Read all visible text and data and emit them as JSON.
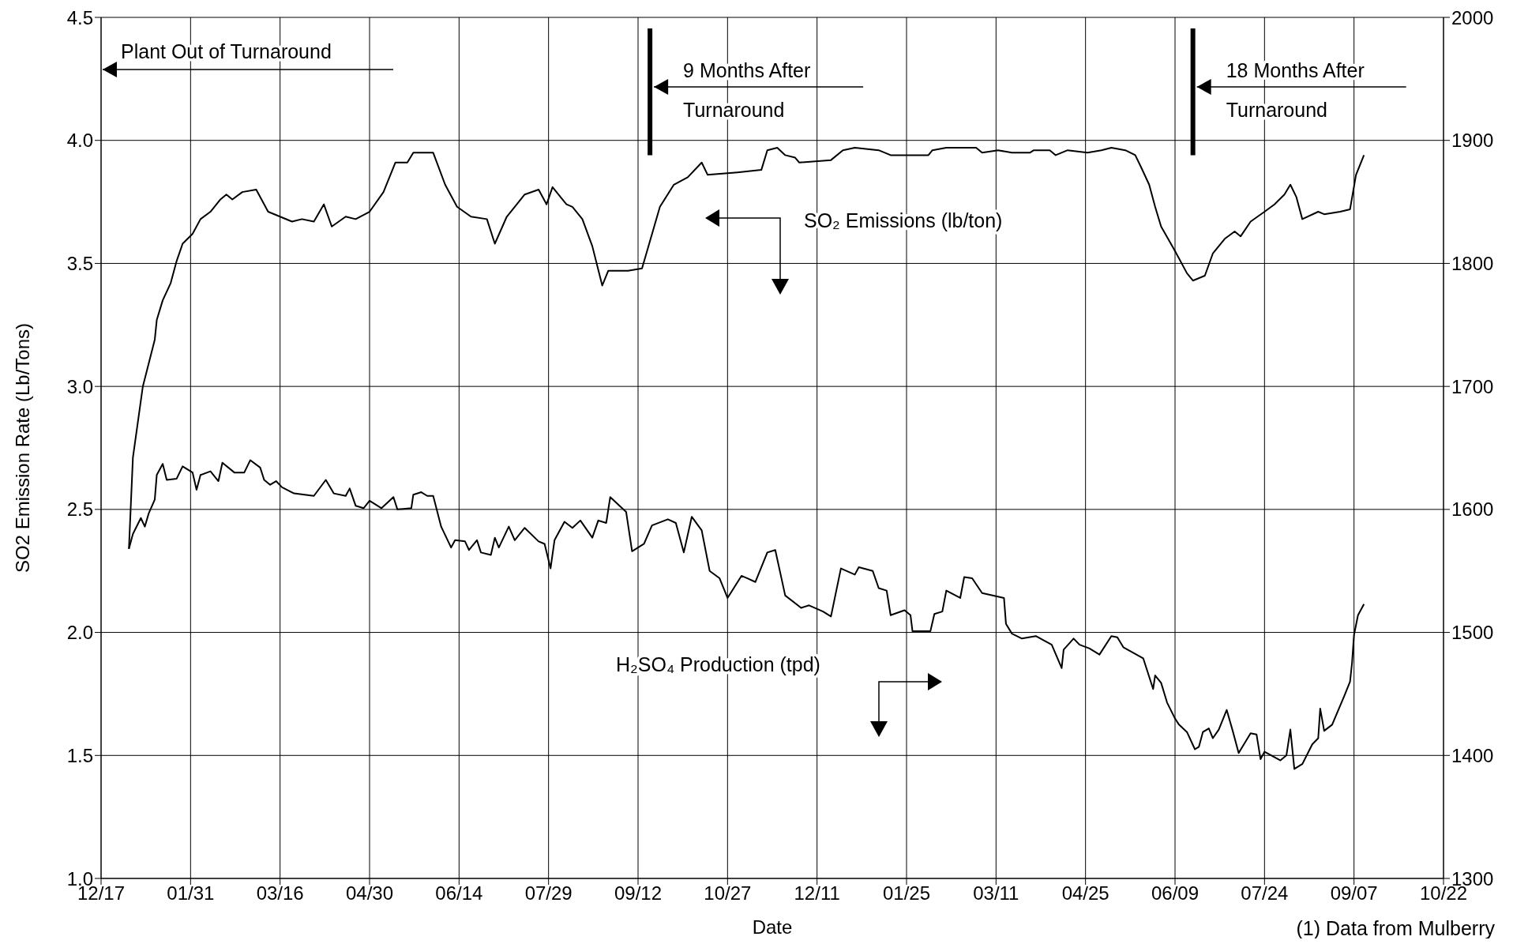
{
  "chart_data": {
    "type": "line",
    "xlabel": "Date",
    "ylabel": "SO2 Emission Rate (Lb/Tons)",
    "xlim": [
      "1999-12-17",
      "2001-10-22"
    ],
    "xticks": [
      {
        "value": "1999-12-17",
        "label": "12/17"
      },
      {
        "value": "2000-01-31",
        "label": "01/31"
      },
      {
        "value": "2000-03-16",
        "label": "03/16"
      },
      {
        "value": "2000-04-30",
        "label": "04/30"
      },
      {
        "value": "2000-06-14",
        "label": "06/14"
      },
      {
        "value": "2000-07-29",
        "label": "07/29"
      },
      {
        "value": "2000-09-12",
        "label": "09/12"
      },
      {
        "value": "2000-10-27",
        "label": "10/27"
      },
      {
        "value": "2000-12-11",
        "label": "12/11"
      },
      {
        "value": "2001-01-25",
        "label": "01/25"
      },
      {
        "value": "2001-03-11",
        "label": "03/11"
      },
      {
        "value": "2001-04-25",
        "label": "04/25"
      },
      {
        "value": "2001-06-09",
        "label": "06/09"
      },
      {
        "value": "2001-07-24",
        "label": "07/24"
      },
      {
        "value": "2001-09-07",
        "label": "09/07"
      },
      {
        "value": "2001-10-22",
        "label": "10/22"
      }
    ],
    "ylim": [
      1,
      4.5
    ],
    "yticks": [
      {
        "value": 1,
        "label": "1.0"
      },
      1.5,
      {
        "value": 2,
        "label": "2.0"
      },
      2.5,
      {
        "value": 3,
        "label": "3.0"
      },
      3.5,
      {
        "value": 4,
        "label": "4.0"
      },
      4.5
    ],
    "y2lim": [
      1300,
      2000
    ],
    "y2ticks": [
      1300,
      1400,
      1500,
      1600,
      1700,
      1800,
      1900,
      2000
    ],
    "grid": true,
    "series": [
      {
        "name": "SO₂ Emissions (lb/ton)",
        "color": "#000000",
        "x": [
          "1999-12-31",
          "2000-01-02",
          "2000-01-07",
          "2000-01-13",
          "2000-01-14",
          "2000-01-17",
          "2000-01-21",
          "2000-01-24",
          "2000-01-27",
          "2000-02-01",
          "2000-02-05",
          "2000-02-10",
          "2000-02-15",
          "2000-02-18",
          "2000-02-21",
          "2000-02-26",
          "2000-03-04",
          "2000-03-10",
          "2000-03-16",
          "2000-03-22",
          "2000-03-27",
          "2000-04-02",
          "2000-04-07",
          "2000-04-11",
          "2000-04-18",
          "2000-04-23",
          "2000-04-30",
          "2000-05-07",
          "2000-05-13",
          "2000-05-19",
          "2000-05-22",
          "2000-06-01",
          "2000-06-07",
          "2000-06-13",
          "2000-06-20",
          "2000-06-28",
          "2000-07-02",
          "2000-07-08",
          "2000-07-17",
          "2000-07-24",
          "2000-07-28",
          "2000-07-31",
          "2000-08-07",
          "2000-08-10",
          "2000-08-15",
          "2000-08-20",
          "2000-08-25",
          "2000-08-28",
          "2000-09-07",
          "2000-09-14",
          "2000-09-23",
          "2000-09-30",
          "2000-10-07",
          "2000-10-14",
          "2000-10-17",
          "2000-11-01",
          "2000-11-13",
          "2000-11-16",
          "2000-11-21",
          "2000-11-25",
          "2000-11-30",
          "2000-12-02",
          "2000-12-18",
          "2000-12-24",
          "2000-12-30",
          "2001-01-11",
          "2001-01-17",
          "2001-02-05",
          "2001-02-07",
          "2001-02-14",
          "2001-03-01",
          "2001-03-04",
          "2001-03-12",
          "2001-03-19",
          "2001-03-28",
          "2001-03-30",
          "2001-04-07",
          "2001-04-10",
          "2001-04-16",
          "2001-04-26",
          "2001-05-03",
          "2001-05-08",
          "2001-05-15",
          "2001-05-20",
          "2001-05-23",
          "2001-05-27",
          "2001-05-30",
          "2001-06-02",
          "2001-06-09",
          "2001-06-15",
          "2001-06-18",
          "2001-06-24",
          "2001-06-28",
          "2001-07-04",
          "2001-07-09",
          "2001-07-12",
          "2001-07-17",
          "2001-07-24",
          "2001-07-29",
          "2001-08-03",
          "2001-08-06",
          "2001-08-09",
          "2001-08-12",
          "2001-08-20",
          "2001-08-23",
          "2001-08-31",
          "2001-09-05",
          "2001-09-08",
          "2001-09-12"
        ],
        "values": [
          2.34,
          2.71,
          3.0,
          3.19,
          3.27,
          3.35,
          3.42,
          3.51,
          3.58,
          3.62,
          3.68,
          3.71,
          3.76,
          3.78,
          3.76,
          3.79,
          3.8,
          3.71,
          3.69,
          3.67,
          3.68,
          3.67,
          3.74,
          3.65,
          3.69,
          3.68,
          3.71,
          3.79,
          3.91,
          3.91,
          3.95,
          3.95,
          3.82,
          3.73,
          3.69,
          3.68,
          3.58,
          3.69,
          3.78,
          3.8,
          3.74,
          3.81,
          3.74,
          3.73,
          3.68,
          3.57,
          3.41,
          3.47,
          3.47,
          3.48,
          3.73,
          3.82,
          3.85,
          3.91,
          3.86,
          3.87,
          3.88,
          3.96,
          3.97,
          3.94,
          3.93,
          3.91,
          3.92,
          3.96,
          3.97,
          3.96,
          3.94,
          3.94,
          3.96,
          3.97,
          3.97,
          3.95,
          3.96,
          3.95,
          3.95,
          3.96,
          3.96,
          3.94,
          3.96,
          3.95,
          3.96,
          3.97,
          3.96,
          3.94,
          3.89,
          3.82,
          3.73,
          3.65,
          3.55,
          3.46,
          3.43,
          3.45,
          3.54,
          3.6,
          3.63,
          3.61,
          3.67,
          3.71,
          3.74,
          3.78,
          3.82,
          3.77,
          3.68,
          3.71,
          3.7,
          3.71,
          3.72,
          3.86,
          3.94
        ]
      },
      {
        "name": "H₂SO₄ Production (tpd)",
        "color": "#000000",
        "axis": "y2",
        "x": [
          "1999-12-31",
          "2000-01-02",
          "2000-01-06",
          "2000-01-08",
          "2000-01-10",
          "2000-01-13",
          "2000-01-14",
          "2000-01-17",
          "2000-01-19",
          "2000-01-24",
          "2000-01-27",
          "2000-02-01",
          "2000-02-03",
          "2000-02-05",
          "2000-02-10",
          "2000-02-14",
          "2000-02-16",
          "2000-02-22",
          "2000-02-27",
          "2000-03-01",
          "2000-03-06",
          "2000-03-08",
          "2000-03-11",
          "2000-03-14",
          "2000-03-17",
          "2000-03-23",
          "2000-04-02",
          "2000-04-08",
          "2000-04-12",
          "2000-04-18",
          "2000-04-20",
          "2000-04-23",
          "2000-04-27",
          "2000-04-30",
          "2000-05-06",
          "2000-05-12",
          "2000-05-14",
          "2000-05-21",
          "2000-05-22",
          "2000-05-26",
          "2000-05-29",
          "2000-06-01",
          "2000-06-05",
          "2000-06-10",
          "2000-06-12",
          "2000-06-17",
          "2000-06-19",
          "2000-06-23",
          "2000-06-25",
          "2000-06-30",
          "2000-07-02",
          "2000-07-04",
          "2000-07-09",
          "2000-07-12",
          "2000-07-17",
          "2000-07-24",
          "2000-07-27",
          "2000-07-30",
          "2000-08-01",
          "2000-08-06",
          "2000-08-10",
          "2000-08-14",
          "2000-08-20",
          "2000-08-23",
          "2000-08-27",
          "2000-08-29",
          "2000-09-06",
          "2000-09-09",
          "2000-09-15",
          "2000-09-19",
          "2000-09-27",
          "2000-10-01",
          "2000-10-05",
          "2000-10-09",
          "2000-10-14",
          "2000-10-18",
          "2000-10-23",
          "2000-10-27",
          "2000-11-03",
          "2000-11-06",
          "2000-11-10",
          "2000-11-16",
          "2000-11-20",
          "2000-11-25",
          "2000-12-03",
          "2000-12-07",
          "2000-12-14",
          "2000-12-18",
          "2000-12-23",
          "2000-12-30",
          "2001-01-01",
          "2001-01-08",
          "2001-01-11",
          "2001-01-15",
          "2001-01-17",
          "2001-01-24",
          "2001-01-27",
          "2001-01-28",
          "2001-02-06",
          "2001-02-08",
          "2001-02-12",
          "2001-02-14",
          "2001-02-21",
          "2001-02-23",
          "2001-02-27",
          "2001-03-04",
          "2001-03-15",
          "2001-03-16",
          "2001-03-19",
          "2001-03-24",
          "2001-03-31",
          "2001-04-08",
          "2001-04-13",
          "2001-04-14",
          "2001-04-19",
          "2001-04-22",
          "2001-04-27",
          "2001-05-02",
          "2001-05-08",
          "2001-05-11",
          "2001-05-14",
          "2001-05-24",
          "2001-05-29",
          "2001-05-30",
          "2001-06-02",
          "2001-06-05",
          "2001-06-09",
          "2001-06-11",
          "2001-06-15",
          "2001-06-19",
          "2001-06-21",
          "2001-06-23",
          "2001-06-26",
          "2001-06-28",
          "2001-07-01",
          "2001-07-05",
          "2001-07-08",
          "2001-07-11",
          "2001-07-17",
          "2001-07-20",
          "2001-07-22",
          "2001-07-24",
          "2001-08-01",
          "2001-08-04",
          "2001-08-06",
          "2001-08-08",
          "2001-08-12",
          "2001-08-17",
          "2001-08-20",
          "2001-08-21",
          "2001-08-23",
          "2001-08-27",
          "2001-09-02",
          "2001-09-05",
          "2001-09-06",
          "2001-09-07",
          "2001-09-09",
          "2001-09-12"
        ],
        "values": [
          1568,
          1580,
          1593,
          1586,
          1597,
          1608,
          1628,
          1637,
          1624,
          1625,
          1635,
          1630,
          1616,
          1628,
          1631,
          1623,
          1638,
          1630,
          1630,
          1640,
          1634,
          1624,
          1620,
          1623,
          1618,
          1613,
          1611,
          1624,
          1613,
          1611,
          1617,
          1603,
          1601,
          1607,
          1601,
          1610,
          1600,
          1601,
          1612,
          1614,
          1611,
          1611,
          1586,
          1569,
          1575,
          1574,
          1567,
          1575,
          1565,
          1563,
          1577,
          1569,
          1586,
          1575,
          1585,
          1574,
          1572,
          1552,
          1575,
          1590,
          1585,
          1591,
          1577,
          1591,
          1589,
          1610,
          1598,
          1566,
          1572,
          1587,
          1592,
          1589,
          1565,
          1594,
          1583,
          1550,
          1544,
          1528,
          1546,
          1544,
          1541,
          1565,
          1567,
          1530,
          1520,
          1522,
          1517,
          1513,
          1552,
          1547,
          1553,
          1550,
          1536,
          1534,
          1514,
          1518,
          1514,
          1501,
          1501,
          1515,
          1517,
          1534,
          1528,
          1545,
          1544,
          1532,
          1528,
          1507,
          1499,
          1495,
          1497,
          1490,
          1471,
          1486,
          1495,
          1490,
          1487,
          1482,
          1497,
          1496,
          1488,
          1479,
          1454,
          1465,
          1459,
          1443,
          1430,
          1425,
          1419,
          1405,
          1407,
          1419,
          1422,
          1414,
          1421,
          1437,
          1420,
          1402,
          1418,
          1417,
          1397,
          1403,
          1396,
          1400,
          1421,
          1389,
          1393,
          1409,
          1414,
          1438,
          1420,
          1425,
          1448,
          1460,
          1475,
          1498,
          1514,
          1523
        ]
      }
    ],
    "ref_lines": [
      {
        "axis": "x",
        "value": "2000-09-18",
        "label": "9 Months After Turnaround"
      },
      {
        "axis": "x",
        "value": "2001-06-18",
        "label": "18 Months After Turnaround"
      }
    ],
    "annotations": [
      "Plant Out of Turnaround",
      "(1) Data from Mulberry"
    ]
  }
}
